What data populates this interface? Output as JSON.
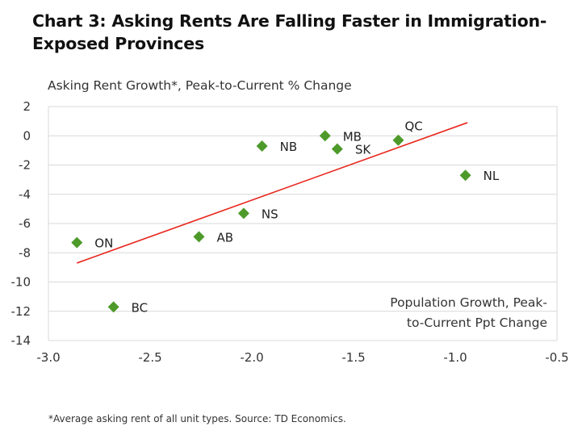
{
  "chart_data": {
    "type": "scatter",
    "title": "Chart 3: Asking Rents Are Falling Faster in Immigration-Exposed Provinces",
    "ylabel": "Asking Rent Growth*, Peak-to-Current % Change",
    "xlabel_lines": [
      "Population Growth, Peak-",
      "to-Current Ppt Change"
    ],
    "note": "*Average asking rent of all unit types. Source: TD Economics.",
    "xlim": [
      -3.0,
      -0.5
    ],
    "ylim": [
      -14,
      2
    ],
    "xticks": [
      "-3.0",
      "-2.5",
      "-2.0",
      "-1.5",
      "-1.0",
      "-0.5"
    ],
    "yticks": [
      "2",
      "0",
      "-2",
      "-4",
      "-6",
      "-8",
      "-10",
      "-12",
      "-14"
    ],
    "grid": "horizontal",
    "marker_color": "#4d9a2a",
    "trendline_color": "#e8281e",
    "points": [
      {
        "label": "ON",
        "x": -2.86,
        "y": -7.3
      },
      {
        "label": "BC",
        "x": -2.68,
        "y": -11.7
      },
      {
        "label": "AB",
        "x": -2.26,
        "y": -6.9
      },
      {
        "label": "NS",
        "x": -2.04,
        "y": -5.3
      },
      {
        "label": "NB",
        "x": -1.95,
        "y": -0.7
      },
      {
        "label": "MB",
        "x": -1.64,
        "y": 0.0
      },
      {
        "label": "SK",
        "x": -1.58,
        "y": -0.9
      },
      {
        "label": "QC",
        "x": -1.28,
        "y": -0.3
      },
      {
        "label": "NL",
        "x": -0.95,
        "y": -2.7
      }
    ],
    "trendline": {
      "x": [
        -2.86,
        -0.94
      ],
      "y": [
        -8.7,
        0.9
      ]
    }
  }
}
